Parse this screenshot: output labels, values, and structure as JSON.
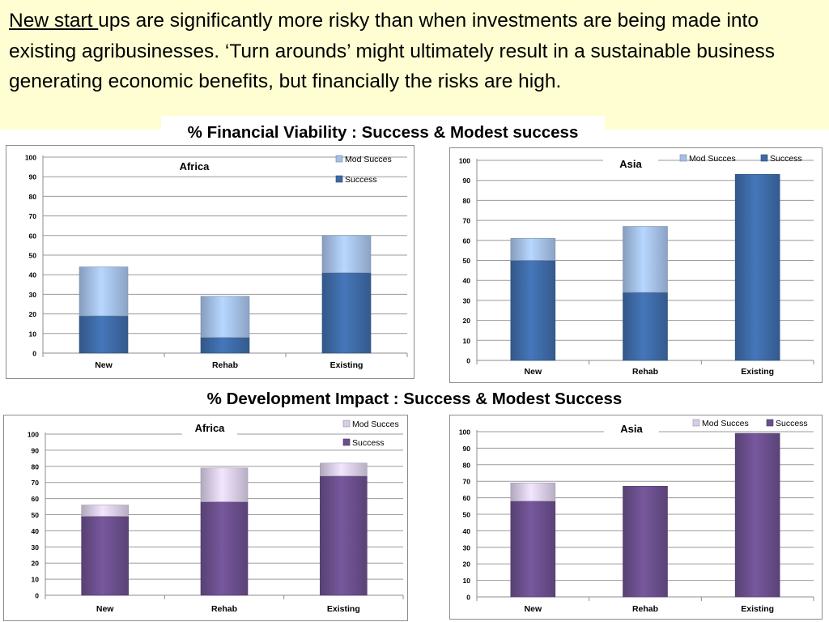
{
  "intro": {
    "underlined": "New start ",
    "rest": "ups are significantly  more risky than when investments  are being made into existing agribusinesses.    ‘Turn arounds’ might ultimately result in a sustainable  business generating economic benefits,  but financially the risks are high."
  },
  "financial_title": "%  Financial Viability  :  Success &  Modest success",
  "development_title": "% Development Impact : Success & Modest Success",
  "chart_data": [
    {
      "type": "bar",
      "stacked": true,
      "title": "Africa",
      "section": "financial",
      "categories": [
        "New",
        "Rehab",
        "Existing"
      ],
      "series": [
        {
          "name": "Success",
          "values": [
            19,
            8,
            41
          ],
          "color": "#3e6aa6"
        },
        {
          "name": "Mod Succes",
          "values": [
            25,
            21,
            19
          ],
          "color": "#a4c0e6"
        }
      ],
      "legend": [
        "Mod Succes",
        "Success"
      ],
      "yticks": [
        0,
        10,
        20,
        30,
        40,
        50,
        60,
        70,
        80,
        90,
        100
      ],
      "ylim": [
        0,
        100
      ],
      "legend_position": "top-right"
    },
    {
      "type": "bar",
      "stacked": true,
      "title": "Asia",
      "section": "financial",
      "categories": [
        "New",
        "Rehab",
        "Existing"
      ],
      "series": [
        {
          "name": "Success",
          "values": [
            50,
            34,
            93
          ],
          "color": "#3e6aa6"
        },
        {
          "name": "Mod Succes",
          "values": [
            11,
            33,
            0
          ],
          "color": "#a4c0e6"
        }
      ],
      "legend": [
        "Mod Succes",
        "Success"
      ],
      "yticks": [
        0,
        10,
        20,
        30,
        40,
        50,
        60,
        70,
        80,
        90,
        100
      ],
      "ylim": [
        0,
        100
      ],
      "legend_position": "top-right"
    },
    {
      "type": "bar",
      "stacked": true,
      "title": "Africa",
      "section": "development",
      "categories": [
        "New",
        "Rehab",
        "Existing"
      ],
      "series": [
        {
          "name": "Success",
          "values": [
            49,
            58,
            74
          ],
          "color": "#6a4f8c"
        },
        {
          "name": "Mod Succes",
          "values": [
            7,
            21,
            8
          ],
          "color": "#d8cde6"
        }
      ],
      "legend": [
        "Mod Succes",
        "Success"
      ],
      "yticks": [
        0,
        10,
        20,
        30,
        40,
        50,
        60,
        70,
        80,
        90,
        100
      ],
      "ylim": [
        0,
        100
      ],
      "legend_position": "top-right"
    },
    {
      "type": "bar",
      "stacked": true,
      "title": "Asia",
      "section": "development",
      "categories": [
        "New",
        "Rehab",
        "Existing"
      ],
      "series": [
        {
          "name": "Success",
          "values": [
            58,
            67,
            99
          ],
          "color": "#6a4f8c"
        },
        {
          "name": "Mod Succes",
          "values": [
            11,
            0,
            0
          ],
          "color": "#d8cde6"
        }
      ],
      "legend": [
        "Mod Succes",
        "Success"
      ],
      "yticks": [
        0,
        10,
        20,
        30,
        40,
        50,
        60,
        70,
        80,
        90,
        100
      ],
      "ylim": [
        0,
        100
      ],
      "legend_position": "top-right"
    }
  ]
}
